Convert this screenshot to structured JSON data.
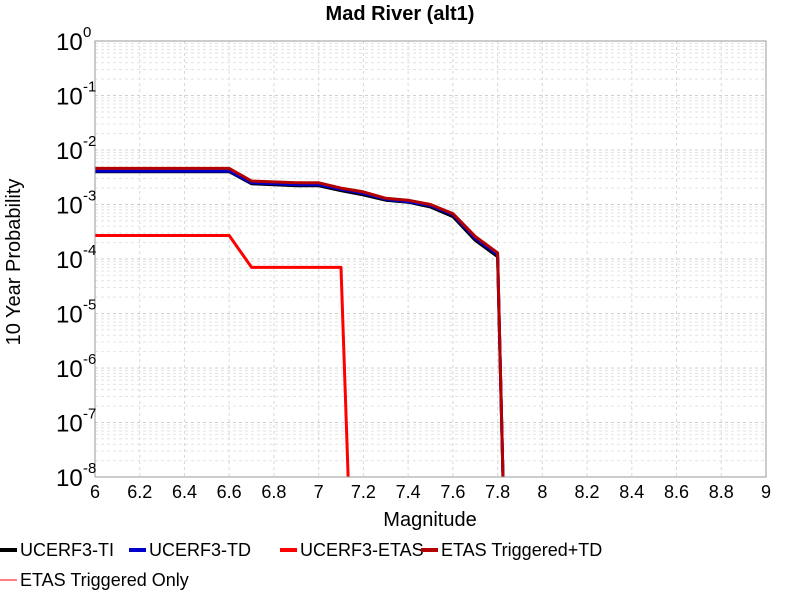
{
  "chart_data": {
    "type": "line",
    "title": "Mad River (alt1)",
    "xlabel": "Magnitude",
    "ylabel": "10 Year Probability",
    "xlim": [
      6,
      9
    ],
    "ylim": [
      1e-08,
      1
    ],
    "yscale": "log",
    "grid": true,
    "legend_position": "bottom",
    "x_ticks": [
      "6",
      "6.2",
      "6.4",
      "6.6",
      "6.8",
      "7",
      "7.2",
      "7.4",
      "7.6",
      "7.8",
      "8",
      "8.2",
      "8.4",
      "8.6",
      "8.8",
      "9"
    ],
    "y_ticks": [
      {
        "base": "10",
        "exp": "-8"
      },
      {
        "base": "10",
        "exp": "-7"
      },
      {
        "base": "10",
        "exp": "-6"
      },
      {
        "base": "10",
        "exp": "-5"
      },
      {
        "base": "10",
        "exp": "-4"
      },
      {
        "base": "10",
        "exp": "-3"
      },
      {
        "base": "10",
        "exp": "-2"
      },
      {
        "base": "10",
        "exp": "-1"
      },
      {
        "base": "10",
        "exp": "0"
      }
    ],
    "series": [
      {
        "name": "UCERF3-TI",
        "color": "#000000",
        "x": [
          6.0,
          6.6,
          6.7,
          6.9,
          7.0,
          7.1,
          7.2,
          7.3,
          7.4,
          7.5,
          7.6,
          7.7,
          7.8,
          7.83
        ],
        "y": [
          0.004,
          0.004,
          0.0024,
          0.0022,
          0.0022,
          0.0018,
          0.0015,
          0.0012,
          0.0011,
          0.0009,
          0.0006,
          0.00022,
          0.00011,
          1e-09
        ]
      },
      {
        "name": "UCERF3-TD",
        "color": "#0000cc",
        "x": [
          6.0,
          6.6,
          6.7,
          6.9,
          7.0,
          7.1,
          7.2,
          7.3,
          7.4,
          7.5,
          7.6,
          7.7,
          7.8,
          7.83
        ],
        "y": [
          0.0041,
          0.0041,
          0.0025,
          0.0023,
          0.0023,
          0.0019,
          0.0016,
          0.00125,
          0.00112,
          0.00095,
          0.00065,
          0.00024,
          0.00012,
          1e-09
        ]
      },
      {
        "name": "UCERF3-ETAS",
        "color": "#ff0000",
        "x": [
          6.0,
          6.6,
          6.7,
          6.9,
          7.0,
          7.1,
          7.14
        ],
        "y": [
          0.00027,
          0.00027,
          7e-05,
          7e-05,
          7e-05,
          7e-05,
          1e-09
        ]
      },
      {
        "name": "ETAS Triggered+TD",
        "color": "#b40000",
        "x": [
          6.0,
          6.6,
          6.7,
          6.9,
          7.0,
          7.1,
          7.2,
          7.3,
          7.4,
          7.5,
          7.6,
          7.7,
          7.8,
          7.83
        ],
        "y": [
          0.0046,
          0.0046,
          0.0027,
          0.0025,
          0.0025,
          0.002,
          0.0017,
          0.0013,
          0.0012,
          0.001,
          0.00068,
          0.00026,
          0.00013,
          1e-09
        ]
      },
      {
        "name": "ETAS Triggered Only",
        "color": "#ff8080",
        "x": [],
        "y": []
      }
    ]
  }
}
